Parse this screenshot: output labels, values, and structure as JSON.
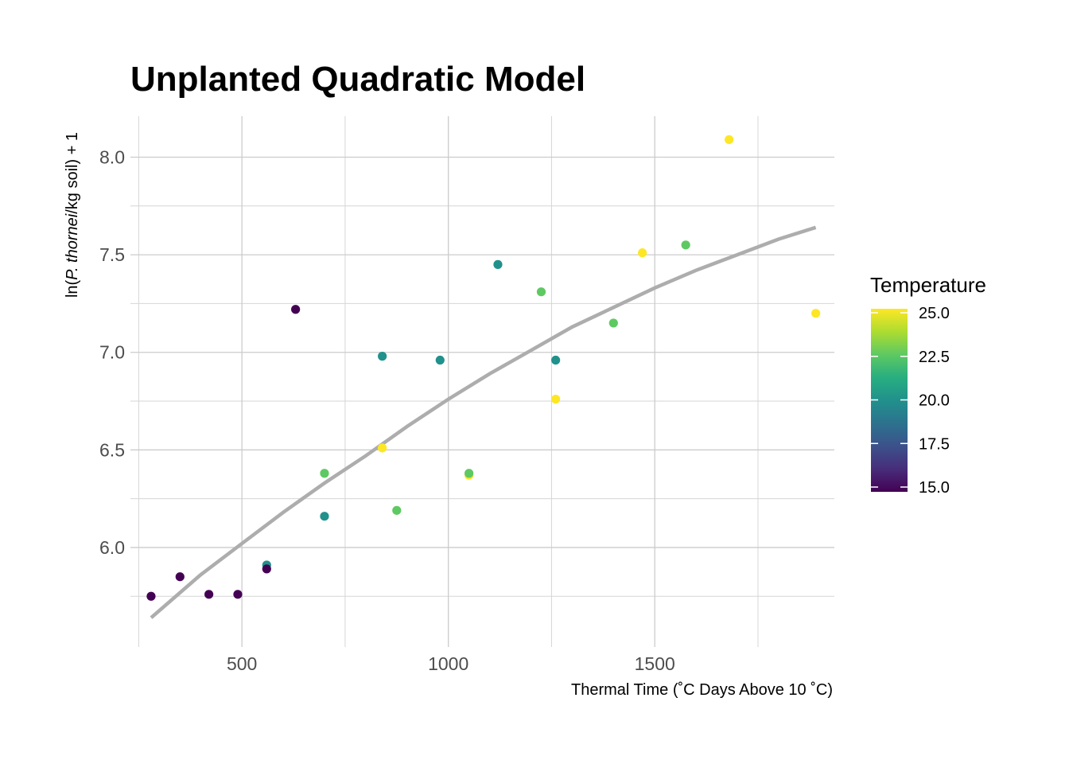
{
  "chart_data": {
    "type": "scatter",
    "title": "Unplanted Quadratic Model",
    "xlabel": "Thermal Time (˚C Days Above 10 ˚C)",
    "ylabel": "ln(P. thornei/kg soil) + 1",
    "ylabel_parts": {
      "prefix": "ln(",
      "italic": "P. thornei",
      "suffix": "/kg soil) + 1"
    },
    "xlim": [
      230,
      1935
    ],
    "ylim": [
      5.49,
      8.21
    ],
    "x_ticks": [
      500,
      1000,
      1500
    ],
    "x_tick_labels": [
      "500",
      "1000",
      "1500"
    ],
    "x_minor_ticks": [
      250,
      750,
      1250,
      1750
    ],
    "y_ticks": [
      6.0,
      6.5,
      7.0,
      7.5,
      8.0
    ],
    "y_tick_labels": [
      "6.0",
      "6.5",
      "7.0",
      "7.5",
      "8.0"
    ],
    "y_minor_ticks": [
      5.75,
      6.25,
      6.75,
      7.25,
      7.75
    ],
    "grid": true,
    "color_scale": {
      "title": "Temperature",
      "min": 15.0,
      "max": 25.0,
      "ticks": [
        15.0,
        17.5,
        20.0,
        22.5,
        25.0
      ],
      "tick_labels": [
        "15.0",
        "17.5",
        "20.0",
        "22.5",
        "25.0"
      ],
      "palette": [
        "#440154",
        "#472d7b",
        "#3b528b",
        "#2c728e",
        "#21918c",
        "#28ae80",
        "#5ec962",
        "#addc30",
        "#fde725"
      ],
      "legend_position": "right"
    },
    "points": [
      {
        "x": 280,
        "y": 5.75,
        "temperature": 15
      },
      {
        "x": 350,
        "y": 5.85,
        "temperature": 15
      },
      {
        "x": 420,
        "y": 5.76,
        "temperature": 15
      },
      {
        "x": 490,
        "y": 5.76,
        "temperature": 15
      },
      {
        "x": 560,
        "y": 5.91,
        "temperature": 20
      },
      {
        "x": 560,
        "y": 5.89,
        "temperature": 15
      },
      {
        "x": 630,
        "y": 7.22,
        "temperature": 15
      },
      {
        "x": 700,
        "y": 6.38,
        "temperature": 22.5
      },
      {
        "x": 700,
        "y": 6.16,
        "temperature": 20
      },
      {
        "x": 840,
        "y": 6.98,
        "temperature": 20
      },
      {
        "x": 840,
        "y": 6.51,
        "temperature": 25
      },
      {
        "x": 875,
        "y": 6.19,
        "temperature": 22.5
      },
      {
        "x": 980,
        "y": 6.96,
        "temperature": 20
      },
      {
        "x": 1050,
        "y": 6.37,
        "temperature": 25
      },
      {
        "x": 1050,
        "y": 6.38,
        "temperature": 22.5
      },
      {
        "x": 1120,
        "y": 7.45,
        "temperature": 20
      },
      {
        "x": 1225,
        "y": 7.31,
        "temperature": 22.5
      },
      {
        "x": 1260,
        "y": 6.96,
        "temperature": 20
      },
      {
        "x": 1260,
        "y": 6.76,
        "temperature": 25
      },
      {
        "x": 1400,
        "y": 7.15,
        "temperature": 22.5
      },
      {
        "x": 1470,
        "y": 7.51,
        "temperature": 25
      },
      {
        "x": 1575,
        "y": 7.55,
        "temperature": 22.5
      },
      {
        "x": 1680,
        "y": 8.09,
        "temperature": 25
      },
      {
        "x": 1890,
        "y": 7.2,
        "temperature": 25
      }
    ],
    "fit_line": {
      "type": "quadratic",
      "color": "#adadad",
      "x": [
        280,
        400,
        500,
        600,
        700,
        800,
        900,
        1000,
        1100,
        1200,
        1300,
        1400,
        1500,
        1600,
        1700,
        1800,
        1890
      ],
      "y": [
        5.64,
        5.86,
        6.02,
        6.18,
        6.33,
        6.47,
        6.62,
        6.76,
        6.89,
        7.01,
        7.13,
        7.23,
        7.33,
        7.42,
        7.5,
        7.58,
        7.64
      ]
    }
  }
}
